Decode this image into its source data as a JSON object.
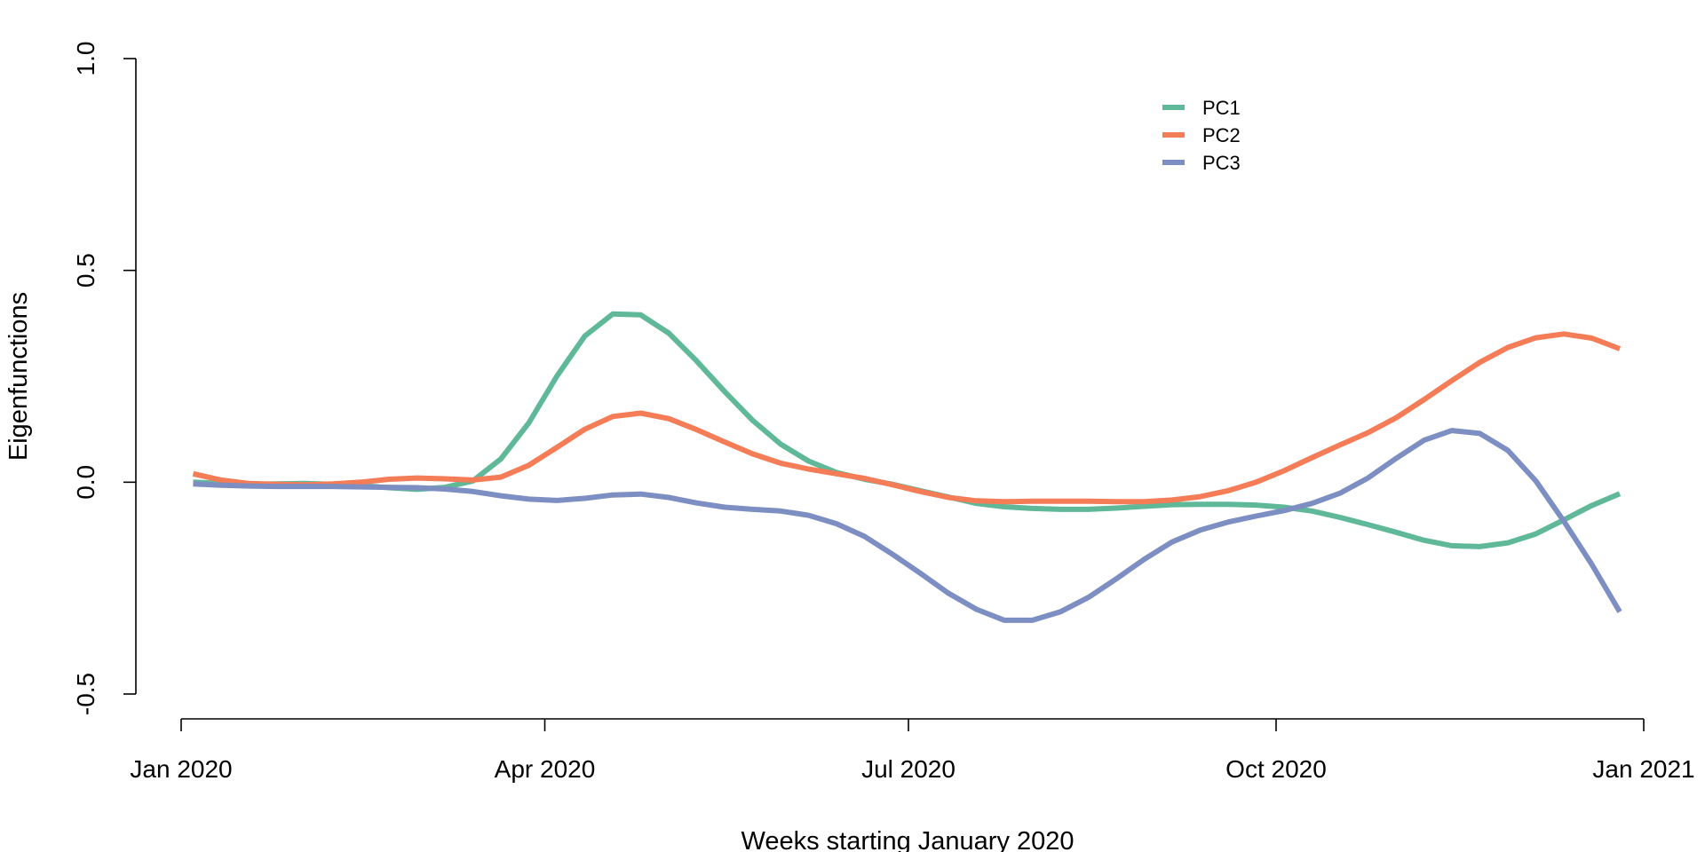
{
  "chart_data": {
    "type": "line",
    "xlabel": "Weeks starting January 2020",
    "ylabel": "Eigenfunctions",
    "ylim": [
      -0.5,
      1.0
    ],
    "xlim": [
      "2020-01-01",
      "2021-01-01"
    ],
    "y_ticks": [
      -0.5,
      0.0,
      0.5,
      1.0
    ],
    "y_tick_labels": [
      "-0.5",
      "0.0",
      "0.5",
      "1.0"
    ],
    "x_ticks": [
      "2020-01-01",
      "2020-04-01",
      "2020-07-01",
      "2020-10-01",
      "2021-01-01"
    ],
    "x_tick_labels": [
      "Jan 2020",
      "Apr 2020",
      "Jul 2020",
      "Oct 2020",
      "Jan 2021"
    ],
    "grid": false,
    "legend_position": "top-right",
    "x": [
      "2020-01-04",
      "2020-01-11",
      "2020-01-18",
      "2020-01-25",
      "2020-02-01",
      "2020-02-08",
      "2020-02-15",
      "2020-02-22",
      "2020-02-29",
      "2020-03-07",
      "2020-03-14",
      "2020-03-21",
      "2020-03-28",
      "2020-04-04",
      "2020-04-11",
      "2020-04-18",
      "2020-04-25",
      "2020-05-02",
      "2020-05-09",
      "2020-05-16",
      "2020-05-23",
      "2020-05-30",
      "2020-06-06",
      "2020-06-13",
      "2020-06-20",
      "2020-06-27",
      "2020-07-04",
      "2020-07-11",
      "2020-07-18",
      "2020-07-25",
      "2020-08-01",
      "2020-08-08",
      "2020-08-15",
      "2020-08-22",
      "2020-08-29",
      "2020-09-05",
      "2020-09-12",
      "2020-09-19",
      "2020-09-26",
      "2020-10-03",
      "2020-10-10",
      "2020-10-17",
      "2020-10-24",
      "2020-10-31",
      "2020-11-07",
      "2020-11-14",
      "2020-11-21",
      "2020-11-28",
      "2020-12-05",
      "2020-12-12",
      "2020-12-19",
      "2020-12-26"
    ],
    "series": [
      {
        "name": "PC1",
        "color": "#5fb898",
        "values": [
          0.0,
          -0.003,
          -0.005,
          -0.004,
          -0.003,
          -0.005,
          -0.008,
          -0.013,
          -0.017,
          -0.012,
          0.003,
          0.055,
          0.14,
          0.25,
          0.345,
          0.397,
          0.395,
          0.352,
          0.286,
          0.214,
          0.146,
          0.09,
          0.05,
          0.023,
          0.007,
          -0.005,
          -0.02,
          -0.035,
          -0.05,
          -0.058,
          -0.062,
          -0.064,
          -0.064,
          -0.061,
          -0.057,
          -0.053,
          -0.052,
          -0.052,
          -0.054,
          -0.059,
          -0.068,
          -0.083,
          -0.1,
          -0.118,
          -0.137,
          -0.15,
          -0.152,
          -0.143,
          -0.122,
          -0.089,
          -0.055,
          -0.027
        ]
      },
      {
        "name": "PC2",
        "color": "#f47c56",
        "values": [
          0.02,
          0.005,
          -0.003,
          -0.005,
          -0.006,
          -0.004,
          0.0,
          0.007,
          0.01,
          0.008,
          0.005,
          0.012,
          0.04,
          0.082,
          0.125,
          0.155,
          0.163,
          0.15,
          0.124,
          0.095,
          0.067,
          0.045,
          0.031,
          0.02,
          0.009,
          -0.006,
          -0.022,
          -0.036,
          -0.044,
          -0.046,
          -0.045,
          -0.045,
          -0.045,
          -0.046,
          -0.046,
          -0.042,
          -0.034,
          -0.02,
          0.0,
          0.027,
          0.058,
          0.088,
          0.117,
          0.152,
          0.195,
          0.24,
          0.283,
          0.318,
          0.341,
          0.35,
          0.34,
          0.315
        ]
      },
      {
        "name": "PC3",
        "color": "#7d8ec3",
        "values": [
          -0.004,
          -0.007,
          -0.009,
          -0.01,
          -0.01,
          -0.01,
          -0.011,
          -0.012,
          -0.013,
          -0.016,
          -0.022,
          -0.032,
          -0.04,
          -0.043,
          -0.038,
          -0.03,
          -0.028,
          -0.036,
          -0.049,
          -0.059,
          -0.064,
          -0.068,
          -0.078,
          -0.098,
          -0.128,
          -0.17,
          -0.215,
          -0.262,
          -0.3,
          -0.326,
          -0.326,
          -0.306,
          -0.272,
          -0.228,
          -0.182,
          -0.141,
          -0.113,
          -0.094,
          -0.08,
          -0.067,
          -0.05,
          -0.026,
          0.01,
          0.056,
          0.099,
          0.122,
          0.115,
          0.075,
          0.003,
          -0.092,
          -0.194,
          -0.306
        ]
      }
    ]
  }
}
